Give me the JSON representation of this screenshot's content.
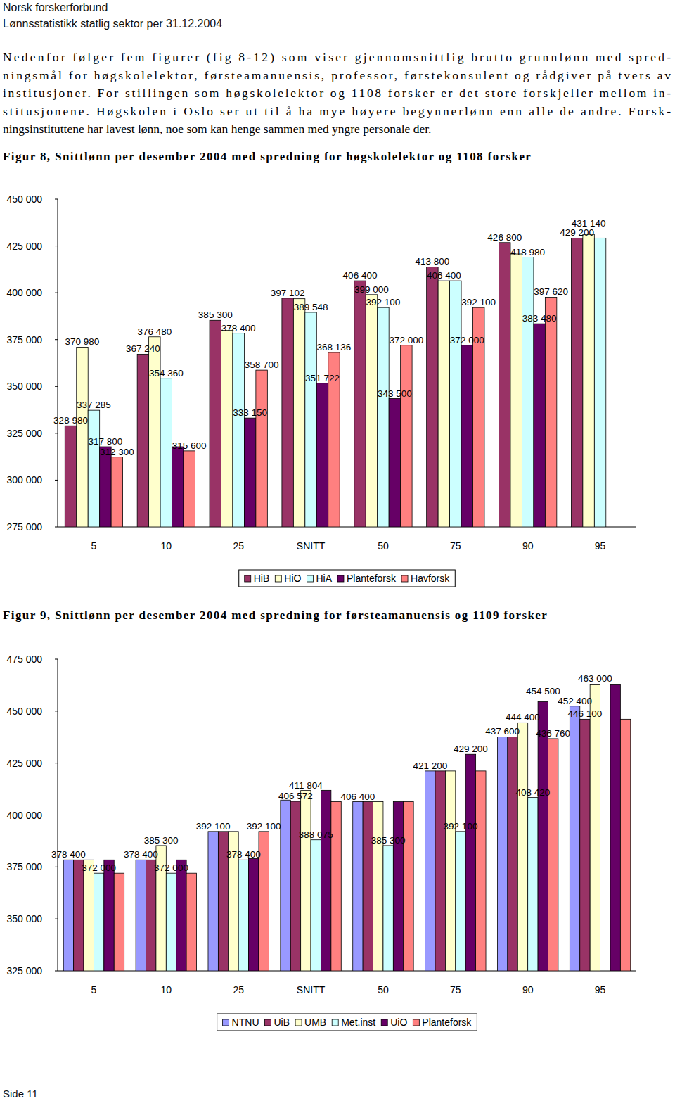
{
  "header": {
    "organization": "Norsk forskerforbund",
    "subtitle": "Lønnsstatistikk statlig sektor per 31.12.2004"
  },
  "intro_lines": [
    "Nedenfor følger fem figurer (fig 8-12) som viser gjennomsnittlig brutto grunnlønn med spred-",
    "ningsmål for høgskolelektor, førsteamanuensis, professor, førstekonsulent og rådgiver på tvers av",
    "institusjoner. For stillingen som høgskolelektor og 1108 forsker er det store forskjeller mellom in-",
    "stitusjonene. Høgskolen i Oslo ser ut til å ha mye høyere begynnerlønn enn alle de andre. Forsk-",
    "ningsinstituttene har lavest lønn, noe som kan henge sammen med yngre personale der."
  ],
  "chart_data": [
    {
      "type": "bar",
      "title": "Figur 8, Snittlønn per desember 2004 med spredning for høgskolelektor og 1108 forsker",
      "categories": [
        "5",
        "10",
        "25",
        "SNITT",
        "50",
        "75",
        "90",
        "95"
      ],
      "series": [
        {
          "name": "HiB",
          "color": "#993366",
          "values": [
            328980,
            367240,
            385300,
            397102,
            406400,
            413800,
            426800,
            429200
          ],
          "value_labels": [
            "328 980",
            "367 240",
            "385 300",
            "397 102",
            "406 400",
            "413 800",
            "426 800",
            "429 200"
          ]
        },
        {
          "name": "HiO",
          "color": "#ffffcc",
          "values": [
            370980,
            376480,
            379900,
            396800,
            399000,
            406400,
            420700,
            431140
          ],
          "value_labels": [
            "370 980",
            "376 480",
            null,
            null,
            "399 000",
            "406 400",
            null,
            "431 140"
          ]
        },
        {
          "name": "HiA",
          "color": "#ccffff",
          "values": [
            337285,
            354360,
            378400,
            389548,
            392100,
            406400,
            418980,
            429200
          ],
          "value_labels": [
            "337 285",
            "354 360",
            "378 400",
            "389 548",
            "392 100",
            null,
            "418 980",
            null
          ]
        },
        {
          "name": "Planteforsk",
          "color": "#660066",
          "values": [
            317800,
            317800,
            333150,
            351722,
            343500,
            372000,
            383480,
            null
          ],
          "value_labels": [
            "317 800",
            null,
            "333 150",
            "351 722",
            "343 500",
            "372 000",
            "383 480",
            null
          ]
        },
        {
          "name": "Havforsk",
          "color": "#ff8080",
          "values": [
            312300,
            315600,
            358700,
            368136,
            372000,
            392100,
            397620,
            null
          ],
          "value_labels": [
            "312 300",
            "315 600",
            "358 700",
            "368 136",
            "372 000",
            "392 100",
            "397 620",
            null
          ]
        }
      ],
      "ylim": [
        275000,
        450000
      ],
      "yticks": [
        {
          "value": 275000,
          "label": "275 000"
        },
        {
          "value": 300000,
          "label": "300 000"
        },
        {
          "value": 325000,
          "label": "325 000"
        },
        {
          "value": 350000,
          "label": "350 000"
        },
        {
          "value": 375000,
          "label": "375 000"
        },
        {
          "value": 400000,
          "label": "400 000"
        },
        {
          "value": 425000,
          "label": "425 000"
        },
        {
          "value": 450000,
          "label": "450 000"
        }
      ],
      "grid": false,
      "data_labels": true,
      "legend": "bottom"
    },
    {
      "type": "bar",
      "title": "Figur 9, Snittlønn per desember 2004 med spredning for førsteamanuensis og 1109 forsker",
      "categories": [
        "5",
        "10",
        "25",
        "SNITT",
        "50",
        "75",
        "90",
        "95"
      ],
      "series": [
        {
          "name": "NTNU",
          "color": "#9999ff",
          "values": [
            378400,
            378400,
            392100,
            407200,
            406400,
            421200,
            437600,
            452400
          ],
          "value_labels": [
            "378 400",
            "378 400",
            "392 100",
            null,
            "406 400",
            "421 200",
            "437 600",
            "452 400"
          ]
        },
        {
          "name": "UiB",
          "color": "#993366",
          "values": [
            378400,
            378400,
            392100,
            406572,
            406400,
            421200,
            437600,
            446100
          ],
          "value_labels": [
            null,
            null,
            null,
            "406 572",
            null,
            null,
            null,
            "446 100"
          ]
        },
        {
          "name": "UMB",
          "color": "#ffffcc",
          "values": [
            378400,
            385300,
            392100,
            411804,
            406400,
            421200,
            444400,
            463000
          ],
          "value_labels": [
            null,
            "385 300",
            null,
            "411 804",
            null,
            null,
            "444 400",
            "463 000"
          ]
        },
        {
          "name": "Met.inst",
          "color": "#ccffff",
          "values": [
            372000,
            372000,
            378400,
            388075,
            385300,
            392100,
            408420,
            null
          ],
          "value_labels": [
            "372 000",
            "372 000",
            "378 400",
            "388 075",
            "385 300",
            "392 100",
            "408 420",
            null
          ]
        },
        {
          "name": "UiO",
          "color": "#660066",
          "values": [
            378400,
            378400,
            379000,
            411900,
            406400,
            429200,
            454500,
            463000
          ],
          "value_labels": [
            null,
            null,
            null,
            null,
            null,
            "429 200",
            "454 500",
            null
          ]
        },
        {
          "name": "Planteforsk",
          "color": "#ff8080",
          "values": [
            372000,
            372000,
            392100,
            406400,
            406400,
            421200,
            436760,
            446100
          ],
          "value_labels": [
            null,
            null,
            "392 100",
            null,
            null,
            null,
            "436 760",
            null
          ]
        }
      ],
      "ylim": [
        325000,
        475000
      ],
      "yticks": [
        {
          "value": 325000,
          "label": "325 000"
        },
        {
          "value": 350000,
          "label": "350 000"
        },
        {
          "value": 375000,
          "label": "375 000"
        },
        {
          "value": 400000,
          "label": "400 000"
        },
        {
          "value": 425000,
          "label": "425 000"
        },
        {
          "value": 450000,
          "label": "450 000"
        },
        {
          "value": 475000,
          "label": "475 000"
        }
      ],
      "grid": false,
      "data_labels": true,
      "legend": "bottom"
    }
  ],
  "footer": "Side 11"
}
